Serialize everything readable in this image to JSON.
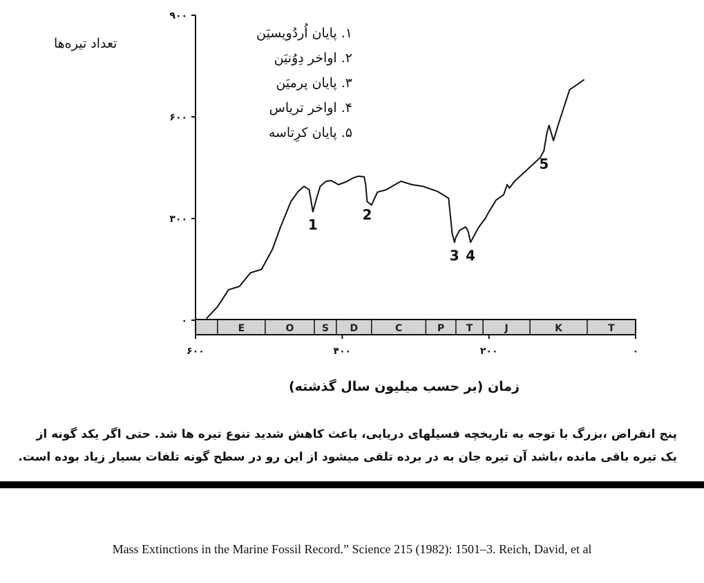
{
  "chart_data": {
    "type": "line",
    "ylabel": "تعداد تیره‌ها",
    "xlabel": "زمان (بر حسب میلیون سال گذشته)",
    "xlim": [
      600,
      0
    ],
    "ylim": [
      0,
      900
    ],
    "x_ticks": [
      {
        "value": 600,
        "label": "۶۰۰"
      },
      {
        "value": 400,
        "label": "۴۰۰"
      },
      {
        "value": 200,
        "label": "۲۰۰"
      },
      {
        "value": 0,
        "label": "۰"
      }
    ],
    "y_ticks": [
      {
        "value": 0,
        "label": "۰"
      },
      {
        "value": 300,
        "label": "۳۰۰"
      },
      {
        "value": 600,
        "label": "۶۰۰"
      },
      {
        "value": 900,
        "label": "۹۰۰"
      }
    ],
    "periods": [
      {
        "label": "E",
        "start": 570,
        "end": 505
      },
      {
        "label": "O",
        "start": 505,
        "end": 438
      },
      {
        "label": "S",
        "start": 438,
        "end": 408
      },
      {
        "label": "D",
        "start": 408,
        "end": 360
      },
      {
        "label": "C",
        "start": 360,
        "end": 286
      },
      {
        "label": "P",
        "start": 286,
        "end": 245
      },
      {
        "label": "T",
        "start": 245,
        "end": 208
      },
      {
        "label": "J",
        "start": 208,
        "end": 144
      },
      {
        "label": "K",
        "start": 144,
        "end": 66
      },
      {
        "label": "T",
        "start": 66,
        "end": 0
      }
    ],
    "series": [
      {
        "x": [
          585,
          570,
          555,
          540,
          525,
          510,
          495,
          485,
          470,
          460,
          452,
          445,
          440,
          435,
          430,
          422,
          415,
          405,
          395,
          385,
          378,
          370,
          368,
          366,
          360,
          352,
          340,
          320,
          305,
          290,
          270,
          255,
          250,
          247,
          245,
          240,
          232,
          230,
          228,
          225,
          220,
          215,
          212,
          205,
          200,
          190,
          180,
          175,
          172,
          165,
          150,
          140,
          130,
          125,
          122,
          120,
          118,
          112,
          105,
          90,
          80,
          70
        ],
        "y": [
          5,
          40,
          90,
          100,
          140,
          150,
          210,
          270,
          350,
          380,
          395,
          385,
          320,
          360,
          395,
          410,
          412,
          400,
          408,
          420,
          425,
          423,
          400,
          350,
          340,
          378,
          385,
          410,
          400,
          395,
          380,
          360,
          255,
          230,
          245,
          265,
          275,
          270,
          260,
          230,
          250,
          270,
          280,
          300,
          320,
          355,
          370,
          400,
          390,
          410,
          440,
          460,
          480,
          500,
          540,
          560,
          575,
          530,
          580,
          680,
          695,
          710
        ]
      }
    ],
    "events": [
      {
        "label": "1",
        "x": 440,
        "y": 320
      },
      {
        "label": "2",
        "x": 366,
        "y": 350
      },
      {
        "label": "3",
        "x": 247,
        "y": 230
      },
      {
        "label": "4",
        "x": 225,
        "y": 230
      },
      {
        "label": "5",
        "x": 125,
        "y": 500
      }
    ],
    "legend": [
      "۱. پایان اُردُویسیَن",
      "۲. اواخر دِوُنیَن",
      "۳. پایان پرمیَن",
      "۴. اواخر تریاس",
      "۵. پایان کرِتاسه"
    ],
    "grid": false
  },
  "caption": {
    "line1": "پنج انقراض ،بزرگ با توجه به تاریخچه فسیلهای دریایی، باعث کاهش شدید تنوع تیره ها شد. حتی اگر یکد گونه از",
    "line2": "یک تیره باقی مانده ،باشد آن تیره جان به در برده تلقی میشود از این رو در سطح گونه تلفات بسیار زیاد بوده است."
  },
  "citation": "Mass Extinctions in the Marine Fossil Record.” Science 215 (1982): 1501–3. Reich, David, et al"
}
